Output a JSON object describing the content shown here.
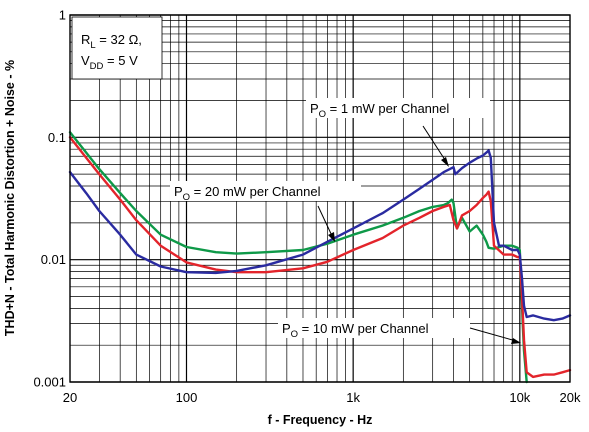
{
  "chart_data": {
    "type": "line",
    "xlabel": "f - Frequency - Hz",
    "ylabel": "THD+N - Total Harmonic Distortion + Noise - %",
    "xscale": "log",
    "yscale": "log",
    "xlim": [
      20,
      20000
    ],
    "ylim": [
      0.001,
      1
    ],
    "grid": true,
    "x_ticks": [
      20,
      100,
      1000,
      10000,
      20000
    ],
    "x_tick_labels": [
      "20",
      "100",
      "1k",
      "10k",
      "20k"
    ],
    "y_ticks": [
      0.001,
      0.01,
      0.1,
      1
    ],
    "y_tick_labels": [
      "0.001",
      "0.01",
      "0.1",
      "1"
    ],
    "conditions": {
      "rl_main": "R",
      "rl_sub": "L",
      "rl_value": " = 32 Ω,",
      "vdd_main": "V",
      "vdd_sub": "DD",
      "vdd_value": " = 5 V"
    },
    "series": [
      {
        "annotation": {
          "main": "P",
          "sub": "O",
          "rest": " = 1 mW per Channel"
        },
        "color": "#2a2ba0",
        "x": [
          20,
          25,
          30,
          40,
          50,
          70,
          100,
          150,
          200,
          300,
          500,
          700,
          1000,
          1500,
          2000,
          2500,
          3000,
          3500,
          4000,
          4100,
          4500,
          5000,
          5500,
          6000,
          6300,
          6500,
          6700,
          7000,
          7500,
          8000,
          9000,
          9700,
          10000,
          10300,
          10600,
          11000,
          12000,
          14000,
          16000,
          18000,
          20000
        ],
        "y": [
          0.052,
          0.035,
          0.025,
          0.016,
          0.011,
          0.0088,
          0.0079,
          0.0078,
          0.0081,
          0.009,
          0.011,
          0.014,
          0.018,
          0.024,
          0.031,
          0.038,
          0.045,
          0.052,
          0.057,
          0.05,
          0.056,
          0.062,
          0.067,
          0.071,
          0.075,
          0.078,
          0.068,
          0.02,
          0.013,
          0.013,
          0.012,
          0.012,
          0.011,
          0.007,
          0.0042,
          0.0034,
          0.0035,
          0.0033,
          0.0032,
          0.0033,
          0.0035
        ]
      },
      {
        "annotation": {
          "main": "P",
          "sub": "O",
          "rest": " = 20 mW per Channel"
        },
        "color": "#0e9948",
        "x": [
          20,
          25,
          30,
          40,
          50,
          70,
          100,
          150,
          200,
          300,
          500,
          700,
          1000,
          1500,
          2000,
          2500,
          3000,
          3500,
          3700,
          3900,
          4000,
          4200,
          4500,
          5000,
          5500,
          6000,
          6300,
          6500,
          7000,
          8000,
          9000,
          9700,
          10000,
          10200,
          10400,
          10600,
          11000
        ],
        "y": [
          0.11,
          0.075,
          0.055,
          0.035,
          0.025,
          0.016,
          0.0127,
          0.0115,
          0.0112,
          0.0115,
          0.012,
          0.0135,
          0.016,
          0.019,
          0.022,
          0.025,
          0.027,
          0.028,
          0.029,
          0.031,
          0.029,
          0.018,
          0.022,
          0.017,
          0.019,
          0.016,
          0.014,
          0.0125,
          0.0123,
          0.013,
          0.013,
          0.0125,
          0.012,
          0.006,
          0.003,
          0.0018,
          0.001
        ]
      },
      {
        "annotation": {
          "main": "P",
          "sub": "O",
          "rest": " = 10 mW per Channel"
        },
        "color": "#e3242b",
        "x": [
          20,
          25,
          30,
          40,
          50,
          70,
          100,
          150,
          200,
          300,
          500,
          700,
          1000,
          1500,
          2000,
          2500,
          3000,
          3500,
          3800,
          4000,
          4200,
          4500,
          5000,
          5500,
          6000,
          6300,
          6500,
          6700,
          7000,
          8000,
          9000,
          9700,
          10000,
          10300,
          10600,
          11000,
          12000,
          14000,
          16000,
          18000,
          20000
        ],
        "y": [
          0.1,
          0.068,
          0.05,
          0.031,
          0.021,
          0.013,
          0.0095,
          0.0083,
          0.0079,
          0.0079,
          0.0085,
          0.0096,
          0.012,
          0.015,
          0.019,
          0.022,
          0.025,
          0.027,
          0.028,
          0.021,
          0.018,
          0.023,
          0.025,
          0.028,
          0.032,
          0.034,
          0.036,
          0.03,
          0.013,
          0.011,
          0.011,
          0.0105,
          0.0105,
          0.005,
          0.0022,
          0.0012,
          0.0011,
          0.00115,
          0.00115,
          0.0012,
          0.00125
        ]
      }
    ]
  }
}
